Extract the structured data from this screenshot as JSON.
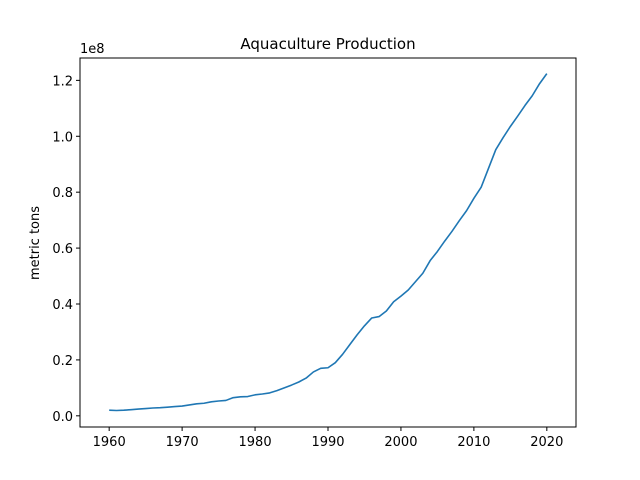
{
  "chart_data": {
    "type": "line",
    "title": "Aquaculture Production",
    "xlabel": "",
    "ylabel": "metric tons",
    "offset_label": "1e8",
    "offset_multiplier": 100000000,
    "xlim": [
      1956,
      2024
    ],
    "ylim": [
      -0.04,
      1.28
    ],
    "xticks": [
      1960,
      1970,
      1980,
      1990,
      2000,
      2010,
      2020
    ],
    "xtick_labels": [
      "1960",
      "1970",
      "1980",
      "1990",
      "2000",
      "2010",
      "2020"
    ],
    "yticks": [
      0.0,
      0.2,
      0.4,
      0.6,
      0.8,
      1.0,
      1.2
    ],
    "ytick_labels": [
      "0.0",
      "0.2",
      "0.4",
      "0.6",
      "0.8",
      "1.0",
      "1.2"
    ],
    "grid": false,
    "series": [
      {
        "color": "#1f77b4",
        "x": [
          1960,
          1961,
          1962,
          1963,
          1964,
          1965,
          1966,
          1967,
          1968,
          1969,
          1970,
          1971,
          1972,
          1973,
          1974,
          1975,
          1976,
          1977,
          1978,
          1979,
          1980,
          1981,
          1982,
          1983,
          1984,
          1985,
          1986,
          1987,
          1988,
          1989,
          1990,
          1991,
          1992,
          1993,
          1994,
          1995,
          1996,
          1997,
          1998,
          1999,
          2000,
          2001,
          2002,
          2003,
          2004,
          2005,
          2006,
          2007,
          2008,
          2009,
          2010,
          2011,
          2012,
          2013,
          2014,
          2015,
          2016,
          2017,
          2018,
          2019,
          2020
        ],
        "values": [
          0.02,
          0.019,
          0.02,
          0.022,
          0.024,
          0.026,
          0.028,
          0.029,
          0.031,
          0.033,
          0.035,
          0.039,
          0.043,
          0.045,
          0.05,
          0.053,
          0.055,
          0.065,
          0.068,
          0.069,
          0.075,
          0.078,
          0.082,
          0.09,
          0.1,
          0.11,
          0.121,
          0.135,
          0.157,
          0.17,
          0.172,
          0.19,
          0.22,
          0.255,
          0.29,
          0.322,
          0.35,
          0.355,
          0.375,
          0.408,
          0.428,
          0.45,
          0.48,
          0.51,
          0.555,
          0.588,
          0.625,
          0.66,
          0.698,
          0.734,
          0.778,
          0.818,
          0.885,
          0.952,
          0.995,
          1.035,
          1.072,
          1.11,
          1.145,
          1.188,
          1.224
        ]
      }
    ]
  }
}
